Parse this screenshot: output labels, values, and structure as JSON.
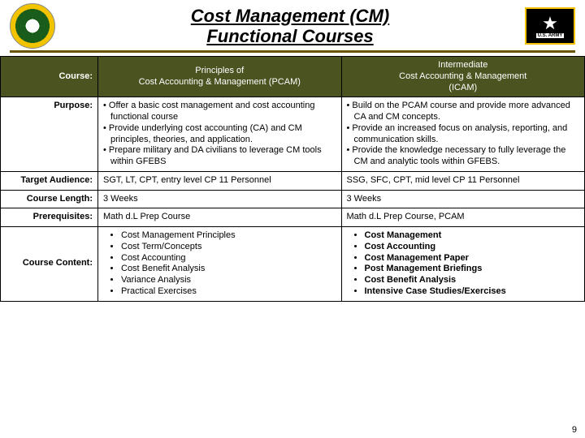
{
  "title_line1": "Cost Management (CM)",
  "title_line2": "Functional Courses",
  "army_label": "U.S. ARMY",
  "page_number": "9",
  "table": {
    "row_labels": {
      "course": "Course:",
      "purpose": "Purpose:",
      "audience": "Target Audience:",
      "length": "Course Length:",
      "prereq": "Prerequisites:",
      "content": "Course Content:"
    },
    "col1": {
      "header_line1": "Principles of",
      "header_line2": "Cost Accounting & Management (PCAM)",
      "purpose": [
        "Offer a basic cost management and cost accounting functional course",
        "Provide underlying cost accounting (CA) and CM principles, theories, and application.",
        "Prepare military and DA civilians to leverage CM tools within GFEBS"
      ],
      "audience": "SGT, LT, CPT, entry level CP 11 Personnel",
      "length": "3 Weeks",
      "prereq": "Math d.L Prep Course",
      "content": [
        "Cost Management Principles",
        "Cost Term/Concepts",
        "Cost Accounting",
        "Cost Benefit Analysis",
        "Variance Analysis",
        "Practical Exercises"
      ]
    },
    "col2": {
      "header_line1": "Intermediate",
      "header_line2": "Cost Accounting & Management",
      "header_line3": "(ICAM)",
      "purpose": [
        "Build on the PCAM course and provide more advanced CA and CM concepts.",
        "Provide an increased focus on analysis, reporting, and communication skills.",
        "Provide the knowledge necessary to fully leverage the CM and analytic tools within GFEBS."
      ],
      "audience": "SSG, SFC, CPT, mid level CP 11 Personnel",
      "length": "3 Weeks",
      "prereq": "Math d.L Prep Course, PCAM",
      "content": [
        "Cost Management",
        "Cost Accounting",
        "Cost Management Paper",
        "Post Management Briefings",
        "Cost Benefit Analysis",
        "Intensive Case Studies/Exercises"
      ]
    }
  },
  "colors": {
    "header_bg": "#4b5320",
    "gold_rule": "#6b5400"
  }
}
